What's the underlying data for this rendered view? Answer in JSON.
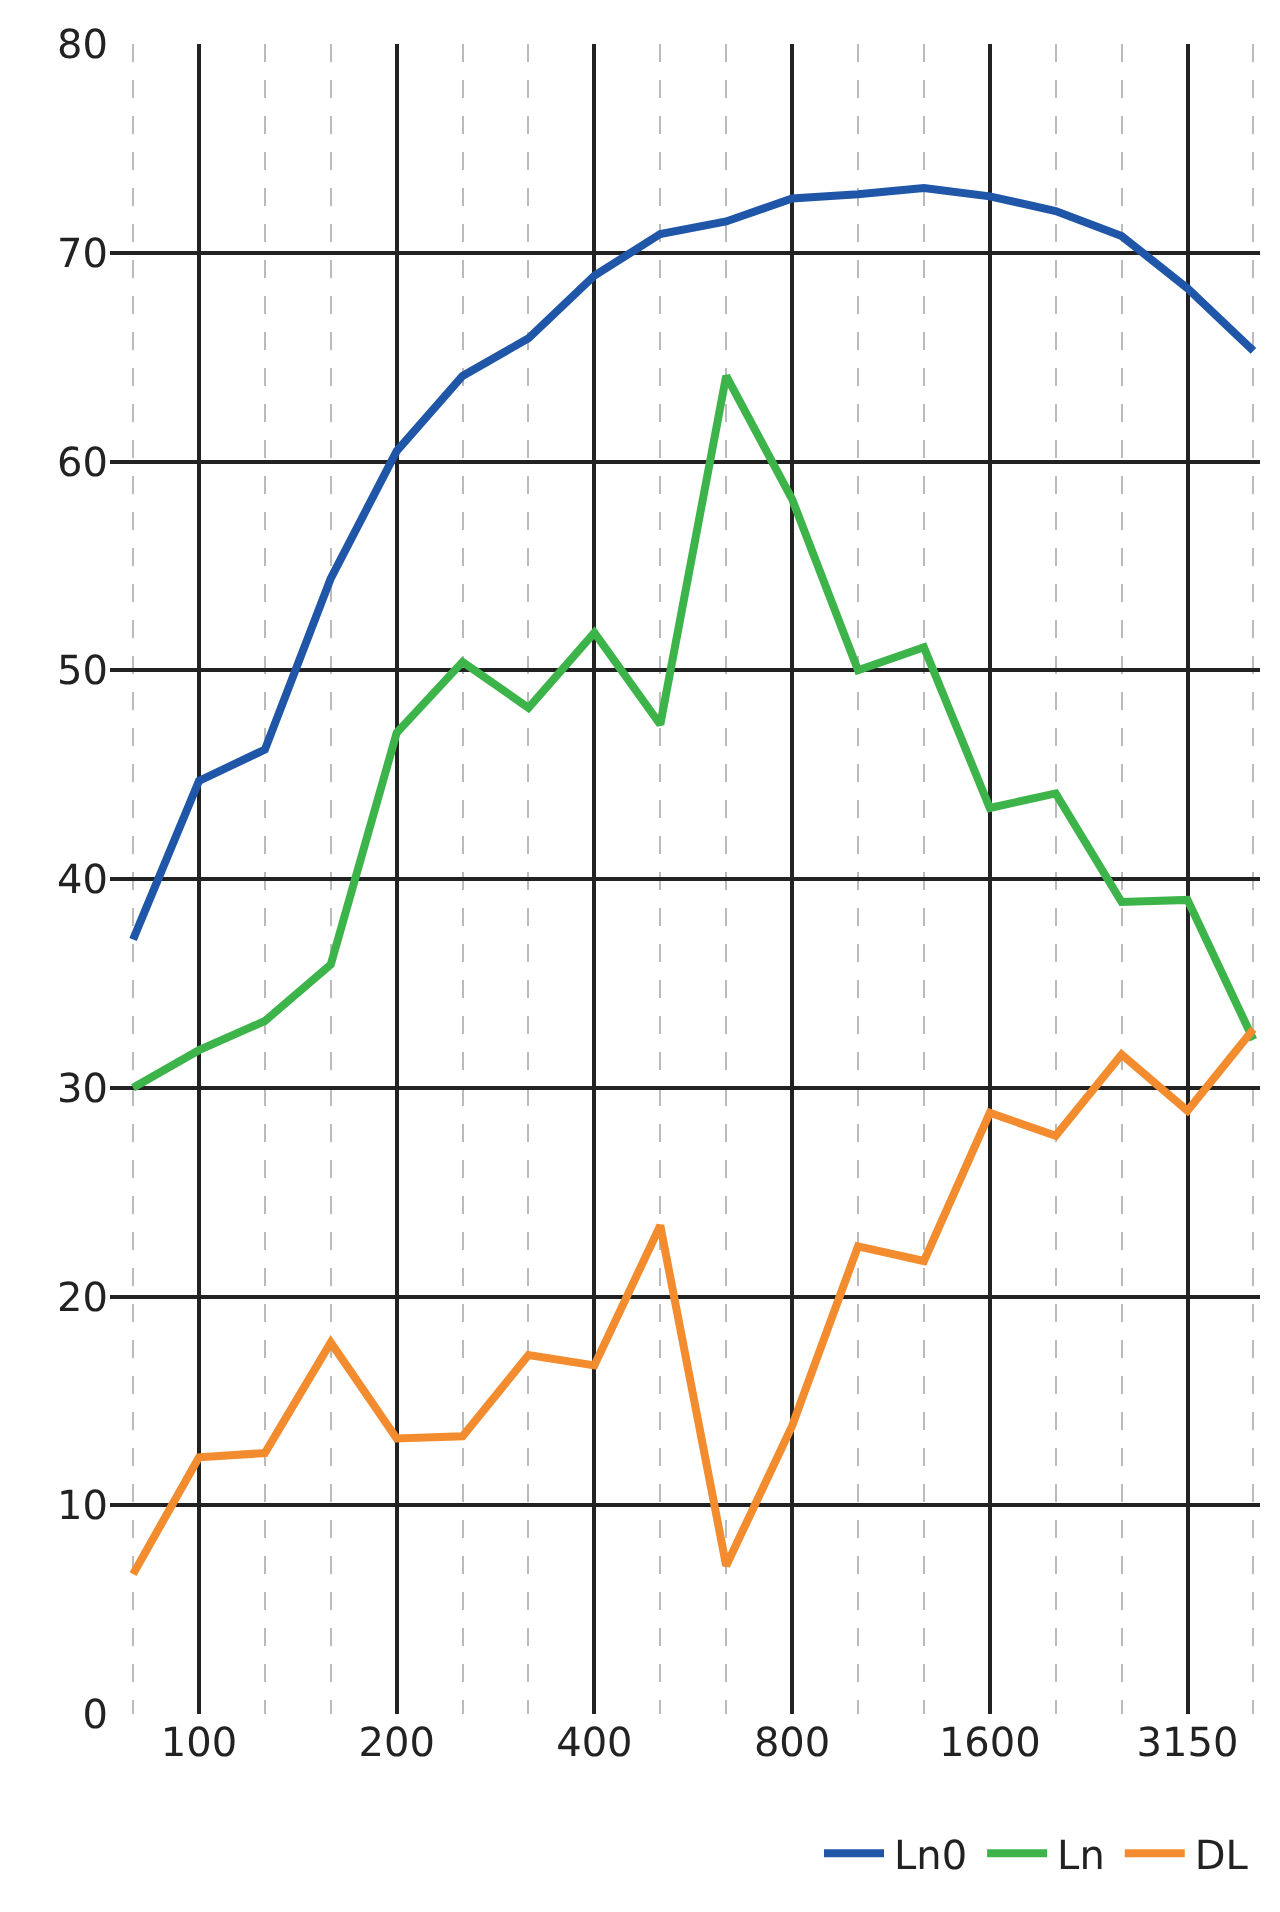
{
  "chart_data": {
    "type": "line",
    "categories": [
      null,
      "100",
      null,
      null,
      "200",
      null,
      null,
      "400",
      null,
      null,
      "800",
      null,
      null,
      "1600",
      null,
      null,
      "3150",
      null
    ],
    "series": [
      {
        "name": "Ln0",
        "color": "#1f56a8",
        "values": [
          37.1,
          44.7,
          46.2,
          54.4,
          60.5,
          64.1,
          65.9,
          68.9,
          70.9,
          71.5,
          72.6,
          72.8,
          73.1,
          72.7,
          72.0,
          70.8,
          68.3,
          65.3
        ]
      },
      {
        "name": "Ln",
        "color": "#3cb44a",
        "values": [
          30.0,
          31.8,
          33.2,
          35.9,
          47.0,
          50.4,
          48.2,
          51.8,
          47.4,
          64.1,
          58.2,
          50.0,
          51.1,
          43.4,
          44.1,
          38.9,
          39.0,
          32.3
        ]
      },
      {
        "name": "DL",
        "color": "#f28c2e",
        "values": [
          6.7,
          12.3,
          12.5,
          17.8,
          13.2,
          13.3,
          17.2,
          16.7,
          23.4,
          7.1,
          13.8,
          22.4,
          21.7,
          28.8,
          27.7,
          31.6,
          28.9,
          32.8
        ]
      }
    ],
    "ylim": [
      0,
      80
    ],
    "yticks": [
      0,
      10,
      20,
      30,
      40,
      50,
      60,
      70,
      80
    ],
    "grid": true,
    "legend": "bottom right",
    "marker": "none",
    "line_style": "solid"
  }
}
